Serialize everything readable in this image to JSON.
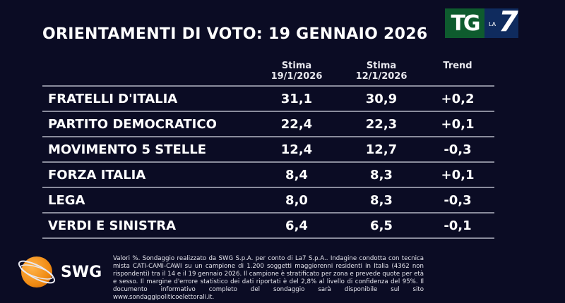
{
  "title": "ORIENTAMENTI DI VOTO: 19 GENNAIO 2026",
  "logo": {
    "tg": "TG",
    "la": "LA",
    "seven": "7"
  },
  "headers": {
    "col1_line1": "Stima",
    "col1_line2": "19/1/2026",
    "col2_line1": "Stima",
    "col2_line2": "12/1/2026",
    "col3": "Trend"
  },
  "rows": [
    {
      "party": "FRATELLI D'ITALIA",
      "current": "31,1",
      "previous": "30,9",
      "trend": "+0,2"
    },
    {
      "party": "PARTITO DEMOCRATICO",
      "current": "22,4",
      "previous": "22,3",
      "trend": "+0,1"
    },
    {
      "party": "MOVIMENTO 5 STELLE",
      "current": "12,4",
      "previous": "12,7",
      "trend": "-0,3"
    },
    {
      "party": "FORZA ITALIA",
      "current": "8,4",
      "previous": "8,3",
      "trend": "+0,1"
    },
    {
      "party": "LEGA",
      "current": "8,0",
      "previous": "8,3",
      "trend": "-0,3"
    },
    {
      "party": "VERDI E SINISTRA",
      "current": "6,4",
      "previous": "6,5",
      "trend": "-0,1"
    }
  ],
  "swg_label": "SWG",
  "footnote": "Valori %. Sondaggio realizzato da SWG S.p.A. per conto di La7 S.p.A.. Indagine condotta con tecnica mista CATI-CAMI-CAWI su un campione di 1.200 soggetti maggiorenni residenti in Italia (4362 non rispondenti) tra il 14 e il 19 gennaio 2026. Il campione è stratificato per zona e prevede quote per età e sesso. Il margine d'errore statistico dei dati riportati è del 2,8% al livello di confidenza del 95%. Il documento informativo completo del sondaggio sarà disponibile sul sito www.sondaggipoliticoelettorali.it."
}
